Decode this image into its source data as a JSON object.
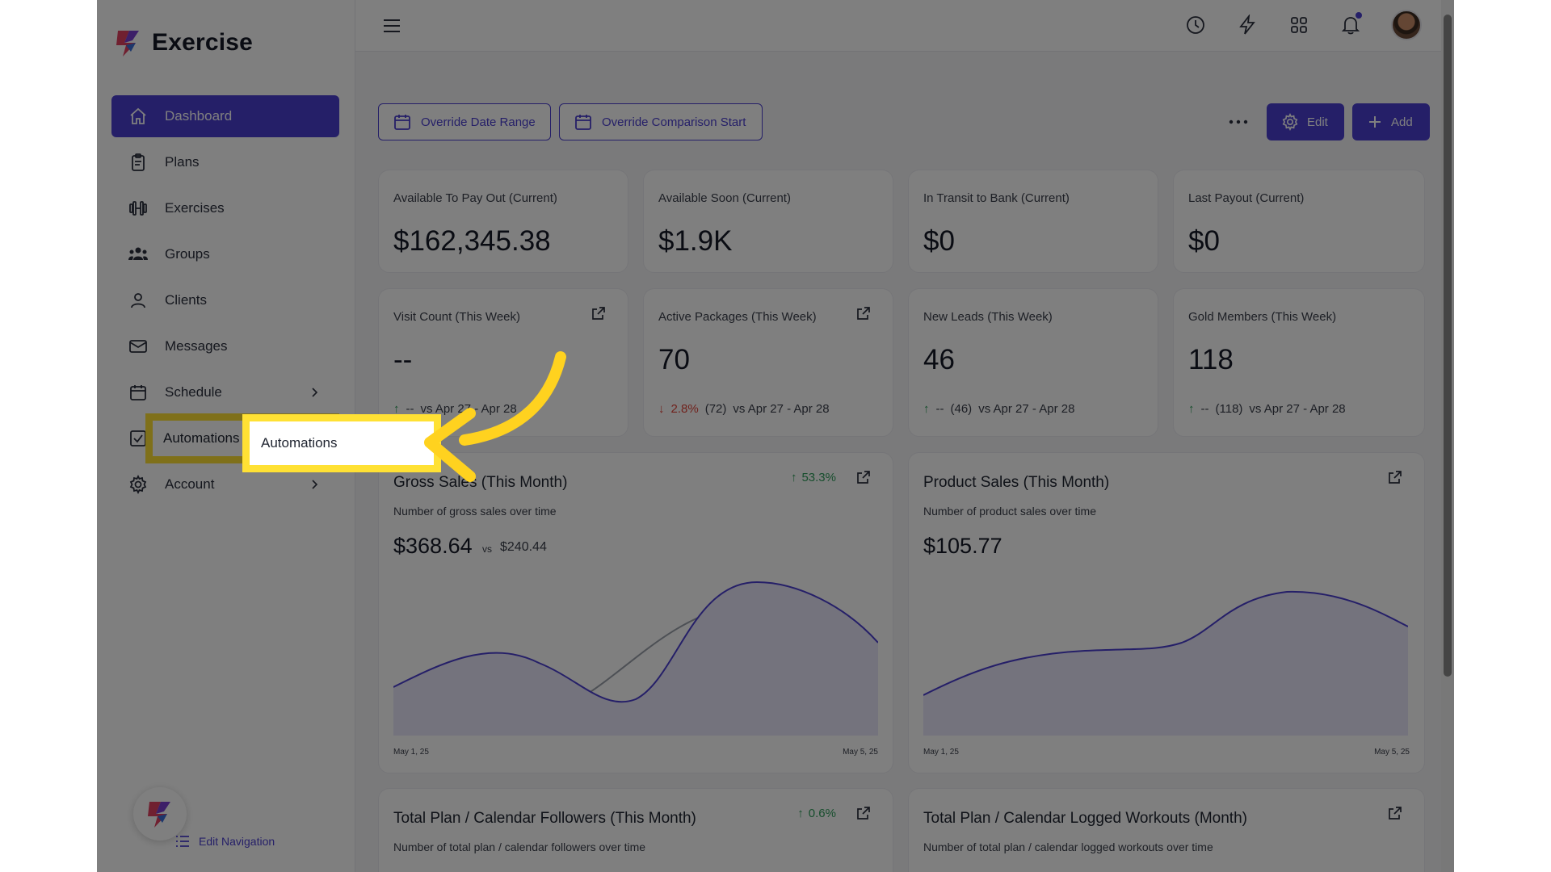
{
  "brand": {
    "name": "Exercise"
  },
  "colors": {
    "accent": "#4b3fd1",
    "highlight": "#ffe134",
    "up": "#2e9d5b",
    "down": "#e0453a"
  },
  "sidebar": {
    "items": [
      {
        "label": "Dashboard",
        "icon": "home-icon",
        "active": true
      },
      {
        "label": "Plans",
        "icon": "clipboard-icon"
      },
      {
        "label": "Exercises",
        "icon": "dumbbell-icon"
      },
      {
        "label": "Groups",
        "icon": "users-icon"
      },
      {
        "label": "Clients",
        "icon": "user-icon"
      },
      {
        "label": "Messages",
        "icon": "mail-icon"
      },
      {
        "label": "Schedule",
        "icon": "calendar-icon",
        "has_children": true
      },
      {
        "label": "Automations",
        "icon": "checkbox-icon",
        "highlighted": true
      },
      {
        "label": "Account",
        "icon": "gear-icon",
        "has_children": true
      }
    ],
    "edit_navigation": "Edit Navigation"
  },
  "toolbar": {
    "override_date_range": "Override Date Range",
    "override_comparison_start": "Override Comparison Start",
    "edit": "Edit",
    "add": "Add"
  },
  "stats_row1": [
    {
      "title": "Available To Pay Out (Current)",
      "value": "$162,345.38"
    },
    {
      "title": "Available Soon (Current)",
      "value": "$1.9K"
    },
    {
      "title": "In Transit to Bank (Current)",
      "value": "$0"
    },
    {
      "title": "Last Payout (Current)",
      "value": "$0"
    }
  ],
  "stats_row2": [
    {
      "title": "Visit Count (This Week)",
      "value": "--",
      "change": "--",
      "prev": "",
      "range": "vs Apr 27 - Apr 28",
      "direction": "up"
    },
    {
      "title": "Active Packages (This Week)",
      "value": "70",
      "change": "2.8%",
      "prev": "(72)",
      "range": "vs Apr 27 - Apr 28",
      "direction": "down"
    },
    {
      "title": "New Leads (This Week)",
      "value": "46",
      "change": "--",
      "prev": "(46)",
      "range": "vs Apr 27 - Apr 28",
      "direction": "up"
    },
    {
      "title": "Gold Members (This Week)",
      "value": "118",
      "change": "--",
      "prev": "(118)",
      "range": "vs Apr 27 - Apr 28",
      "direction": "up"
    }
  ],
  "gross_sales": {
    "title": "Gross Sales (This Month)",
    "subtitle": "Number of gross sales over time",
    "value": "$368.64",
    "vs_label": "vs",
    "vs_value": "$240.44",
    "change": "53.3%",
    "x_start": "May 1, 25",
    "x_end": "May 5, 25"
  },
  "product_sales": {
    "title": "Product Sales (This Month)",
    "subtitle": "Number of product sales over time",
    "value": "$105.77",
    "x_start": "May 1, 25",
    "x_end": "May 5, 25"
  },
  "followers": {
    "title": "Total Plan / Calendar Followers (This Month)",
    "subtitle": "Number of total plan / calendar followers over time",
    "change": "0.6%"
  },
  "logged_workouts": {
    "title": "Total Plan / Calendar Logged Workouts (Month)",
    "subtitle": "Number of total plan / calendar logged workouts over time"
  }
}
